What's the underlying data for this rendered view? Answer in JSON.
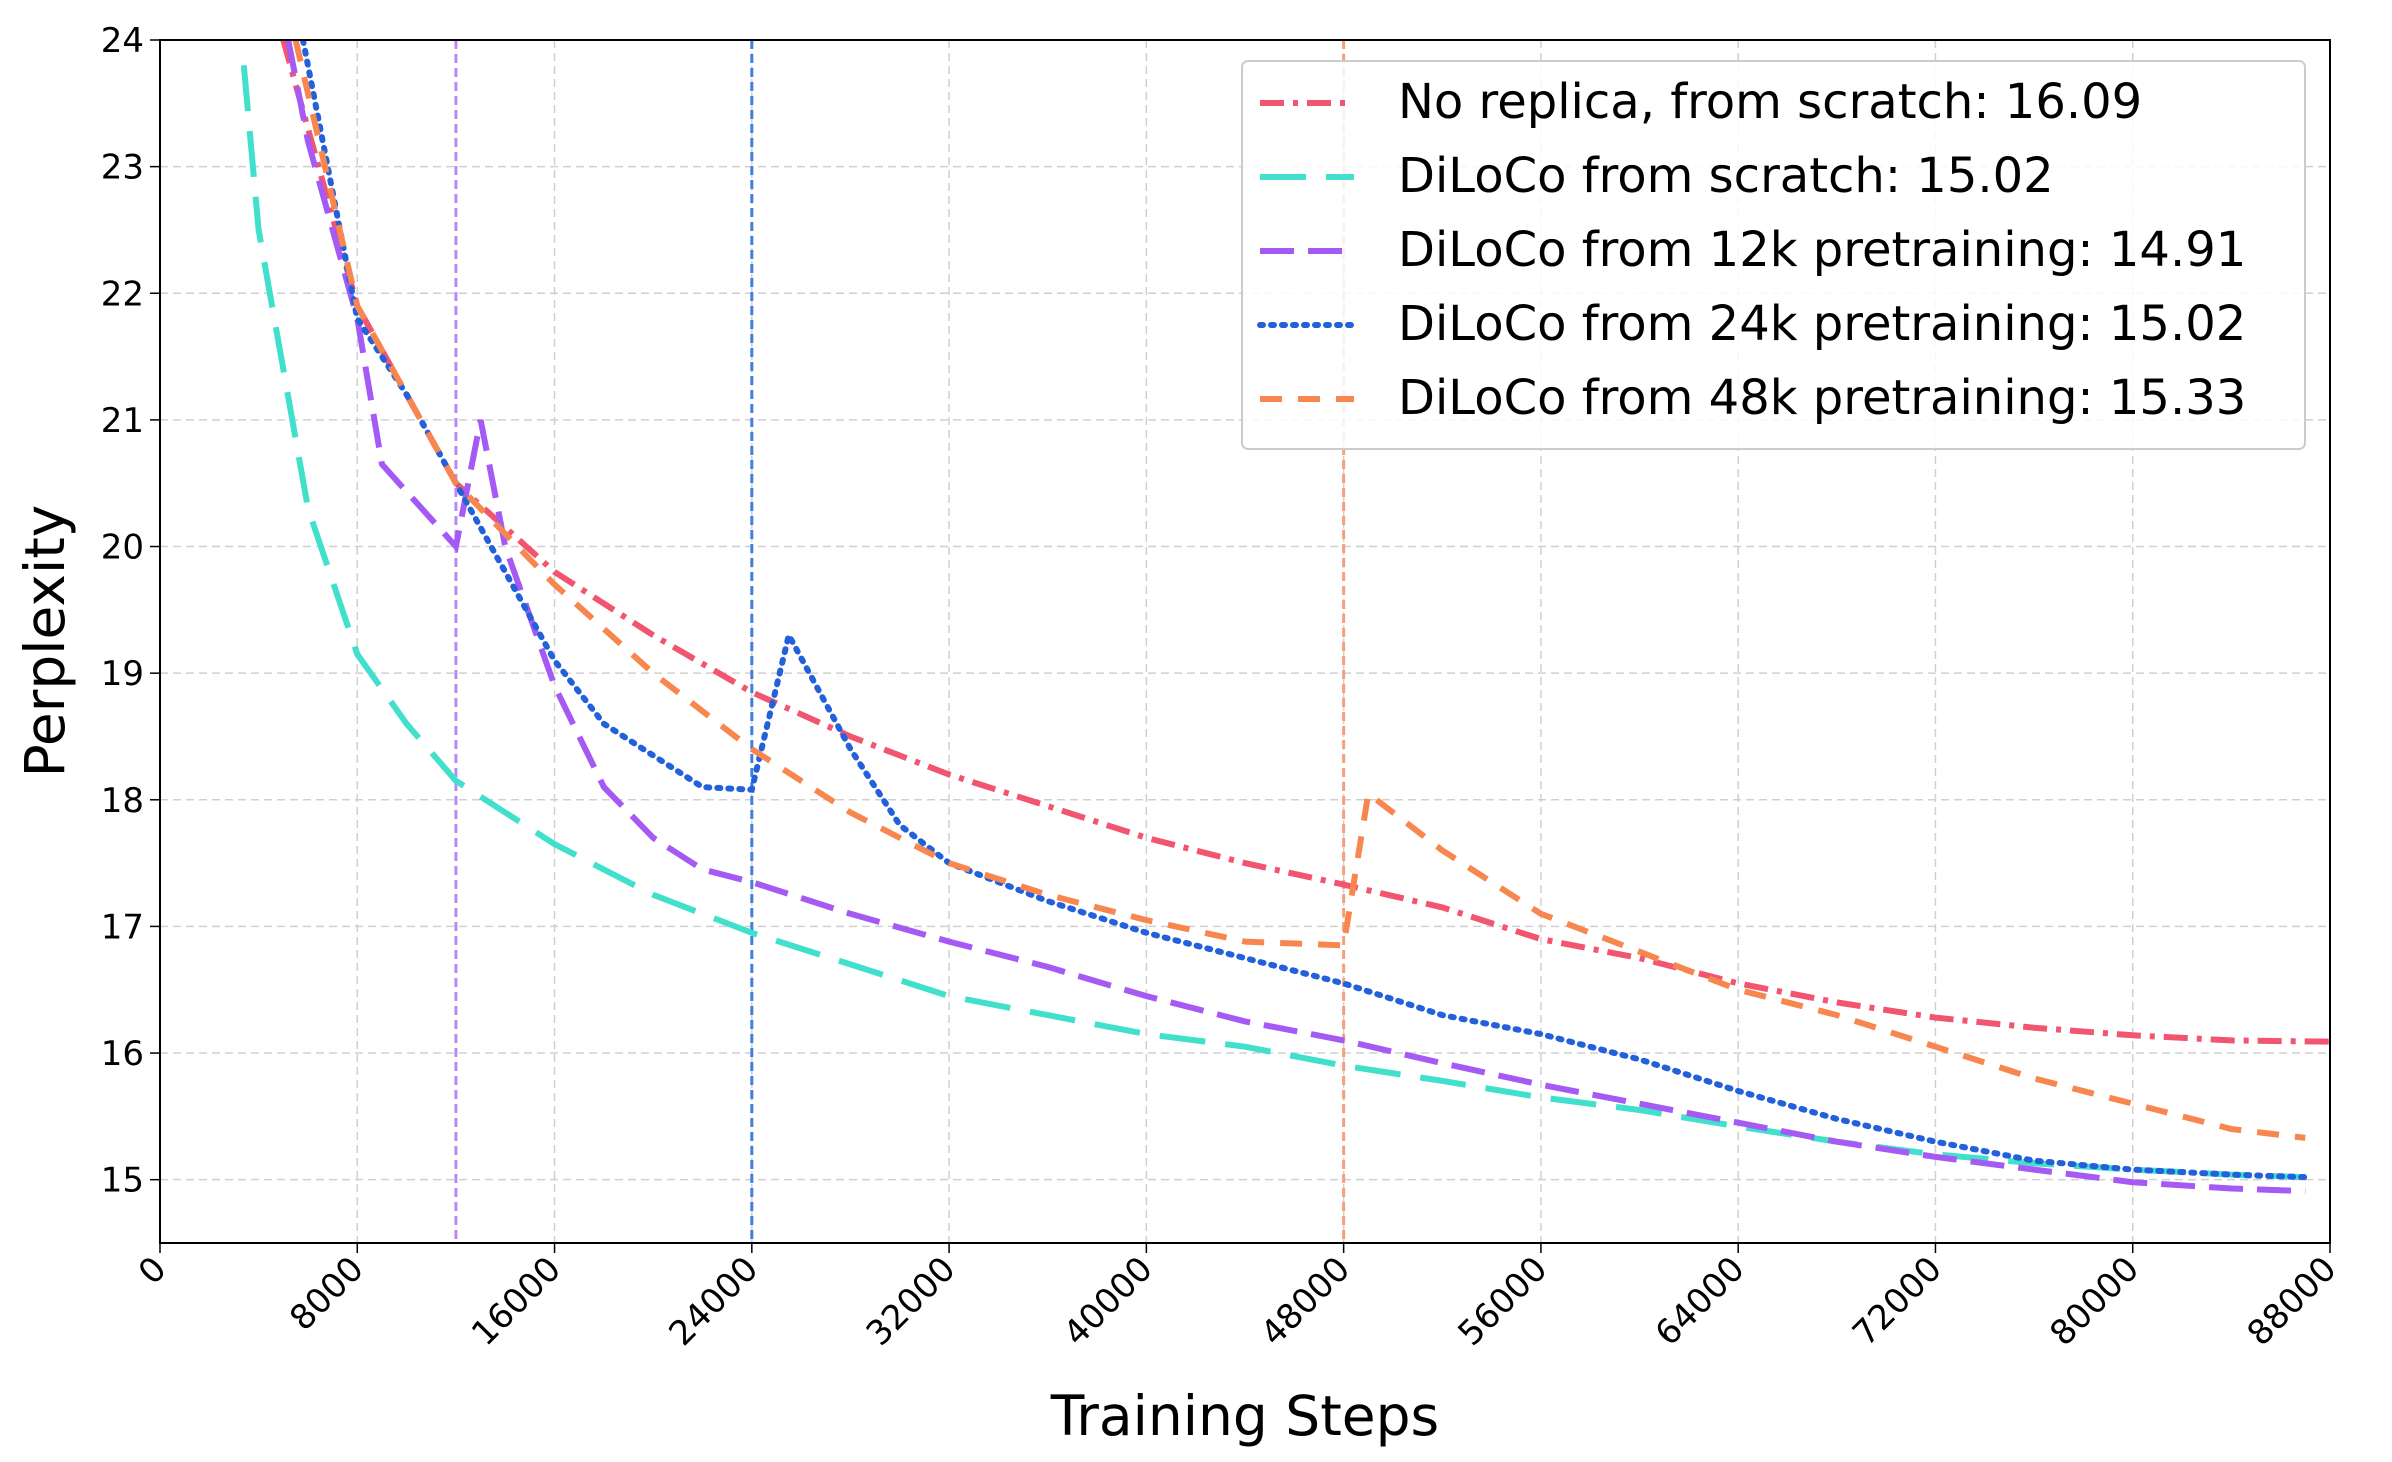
{
  "chart_data": {
    "type": "line",
    "xlabel": "Training Steps",
    "ylabel": "Perplexity",
    "xlim": [
      0,
      88000
    ],
    "ylim": [
      14.5,
      24
    ],
    "xticks": [
      0,
      8000,
      16000,
      24000,
      32000,
      40000,
      48000,
      56000,
      64000,
      72000,
      80000,
      88000
    ],
    "yticks": [
      15,
      16,
      17,
      18,
      19,
      20,
      21,
      22,
      23,
      24
    ],
    "grid": true,
    "legend": "upper right",
    "vlines": [
      {
        "x": 12000,
        "color": "#b98af7"
      },
      {
        "x": 24000,
        "color": "#3f7fe2"
      },
      {
        "x": 48000,
        "color": "#f5a07a"
      }
    ],
    "series": [
      {
        "name": "No replica, from scratch: 16.09",
        "color": "#f2556f",
        "style": "dashdot",
        "x": [
          5000,
          8000,
          12000,
          16000,
          20000,
          24000,
          28000,
          32000,
          36000,
          40000,
          44000,
          48000,
          52000,
          56000,
          60000,
          64000,
          68000,
          72000,
          76000,
          80000,
          84000,
          88000
        ],
        "values": [
          24,
          21.9,
          20.5,
          19.8,
          19.3,
          18.85,
          18.5,
          18.2,
          17.95,
          17.7,
          17.5,
          17.33,
          17.15,
          16.9,
          16.75,
          16.55,
          16.4,
          16.28,
          16.2,
          16.14,
          16.1,
          16.09
        ]
      },
      {
        "name": "DiLoCo from scratch: 15.02",
        "color": "#40e0cc",
        "style": "longdash",
        "x": [
          3400,
          4000,
          6000,
          8000,
          10000,
          12000,
          16000,
          20000,
          24000,
          28000,
          32000,
          36000,
          40000,
          44000,
          48000,
          52000,
          56000,
          60000,
          64000,
          68000,
          72000,
          76000,
          80000,
          84000,
          87000
        ],
        "values": [
          23.8,
          22.5,
          20.3,
          19.15,
          18.6,
          18.15,
          17.65,
          17.25,
          16.95,
          16.7,
          16.45,
          16.3,
          16.15,
          16.05,
          15.9,
          15.78,
          15.65,
          15.55,
          15.42,
          15.3,
          15.2,
          15.13,
          15.08,
          15.04,
          15.02
        ]
      },
      {
        "name": "DiLoCo from 12k pretraining: 14.91",
        "color": "#a55af4",
        "style": "dash",
        "x": [
          5200,
          6000,
          8000,
          9000,
          12000,
          13000,
          14000,
          16000,
          18000,
          20000,
          22000,
          24000,
          28000,
          32000,
          36000,
          40000,
          44000,
          48000,
          52000,
          56000,
          60000,
          64000,
          68000,
          72000,
          76000,
          80000,
          84000,
          87000
        ],
        "values": [
          24,
          23.2,
          21.8,
          20.65,
          20.0,
          21.0,
          20.0,
          18.9,
          18.1,
          17.7,
          17.45,
          17.35,
          17.1,
          16.88,
          16.68,
          16.45,
          16.25,
          16.1,
          15.92,
          15.75,
          15.6,
          15.45,
          15.3,
          15.18,
          15.08,
          14.98,
          14.93,
          14.91
        ]
      },
      {
        "name": "DiLoCo from 24k pretraining: 15.02",
        "color": "#2360dc",
        "style": "dotted",
        "x": [
          5800,
          8000,
          10000,
          12000,
          14000,
          16000,
          18000,
          20000,
          22000,
          24000,
          25500,
          28000,
          30000,
          32000,
          36000,
          40000,
          44000,
          48000,
          52000,
          56000,
          60000,
          64000,
          68000,
          72000,
          76000,
          80000,
          84000,
          87000
        ],
        "values": [
          24,
          21.8,
          21.2,
          20.5,
          19.8,
          19.1,
          18.6,
          18.35,
          18.1,
          18.08,
          19.3,
          18.4,
          17.8,
          17.5,
          17.2,
          16.95,
          16.75,
          16.55,
          16.3,
          16.15,
          15.95,
          15.7,
          15.48,
          15.3,
          15.15,
          15.08,
          15.04,
          15.02
        ]
      },
      {
        "name": "DiLoCo from 48k pretraining: 15.33",
        "color": "#f7874f",
        "style": "shortdash",
        "x": [
          5500,
          8000,
          12000,
          16000,
          20000,
          24000,
          28000,
          32000,
          36000,
          40000,
          44000,
          48000,
          49000,
          52000,
          56000,
          60000,
          64000,
          68000,
          72000,
          76000,
          80000,
          84000,
          87000
        ],
        "values": [
          24,
          21.9,
          20.5,
          19.7,
          19.0,
          18.4,
          17.9,
          17.5,
          17.25,
          17.05,
          16.88,
          16.85,
          18.05,
          17.6,
          17.1,
          16.8,
          16.5,
          16.3,
          16.05,
          15.8,
          15.6,
          15.4,
          15.33
        ]
      }
    ]
  }
}
